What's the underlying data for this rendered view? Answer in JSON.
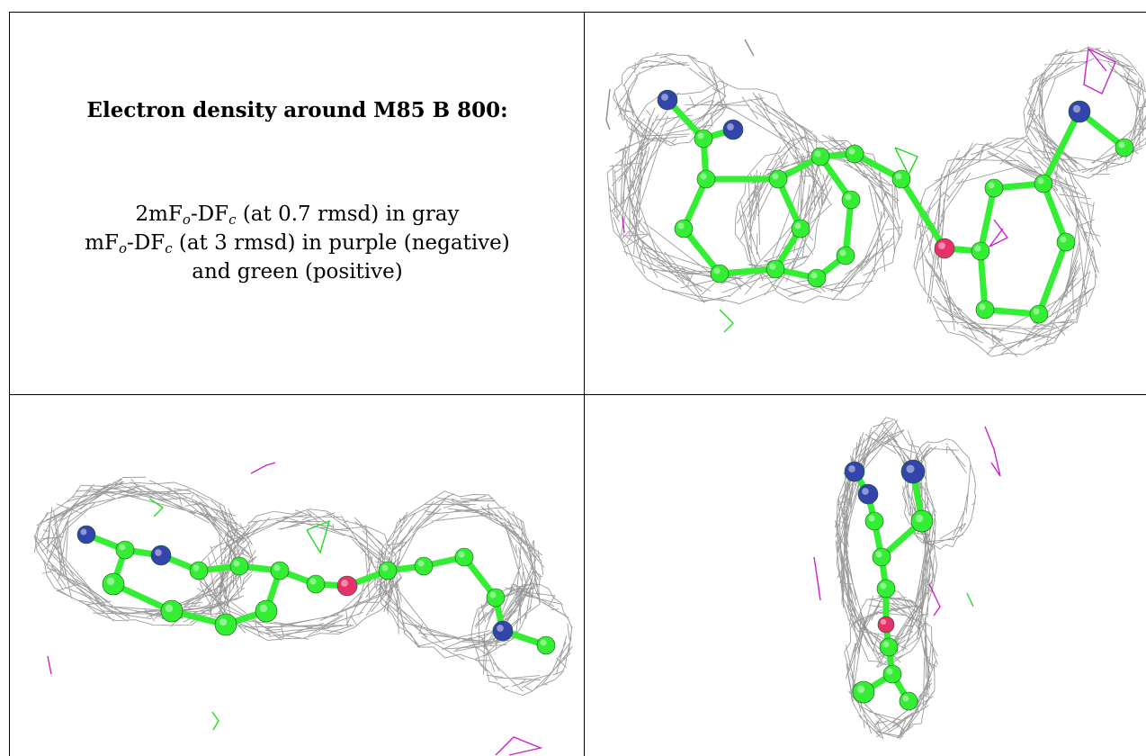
{
  "text_panel": {
    "title": "Electron density around M85 B 800:",
    "line1": {
      "pre": "2mF",
      "sub1": "o",
      "mid": "-DF",
      "sub2": "c",
      "post": " (at 0.7 rmsd) in gray"
    },
    "line2": {
      "pre": "mF",
      "sub1": "o",
      "mid": "-DF",
      "sub2": "c",
      "post": " (at 3 rmsd) in purple (negative)"
    },
    "line3": "and green (positive)"
  },
  "colors": {
    "carbon": "#33ee33",
    "nitrogen": "#3344aa",
    "oxygen": "#e8306a",
    "mesh_2fofc": "#8c8c8c",
    "diff_negative": "#cc22cc",
    "diff_positive": "#22dd22"
  },
  "views": [
    {
      "name": "view-top-right"
    },
    {
      "name": "view-bottom-left"
    },
    {
      "name": "view-bottom-right"
    }
  ]
}
